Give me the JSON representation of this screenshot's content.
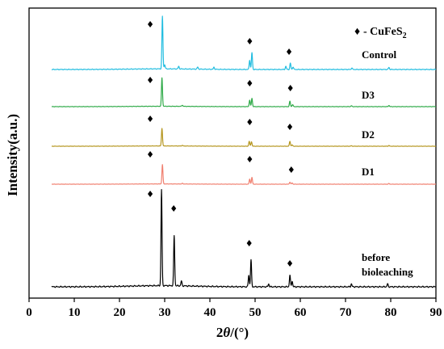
{
  "chart_data": {
    "type": "line",
    "xlabel_prefix": "2",
    "xlabel_theta": "θ",
    "xlabel_suffix": "/(°)",
    "ylabel": "Intensity(a.u.)",
    "xlim": [
      0,
      90
    ],
    "xticks": [
      0,
      10,
      20,
      30,
      40,
      50,
      60,
      70,
      80,
      90
    ],
    "yticks_shown": false,
    "grid": false,
    "legend": {
      "symbol": "♦",
      "text": "- CuFeS",
      "subscript": "2",
      "placement": "top-right"
    },
    "series": [
      {
        "name": "Control",
        "color": "#22bde0",
        "x_range": [
          5,
          90
        ],
        "peaks": [
          {
            "x": 29.5,
            "h": 1.0
          },
          {
            "x": 30.0,
            "h": 0.08
          },
          {
            "x": 33.1,
            "h": 0.05
          },
          {
            "x": 37.3,
            "h": 0.04
          },
          {
            "x": 40.9,
            "h": 0.04
          },
          {
            "x": 48.8,
            "h": 0.18
          },
          {
            "x": 49.3,
            "h": 0.32
          },
          {
            "x": 56.8,
            "h": 0.06
          },
          {
            "x": 57.8,
            "h": 0.12
          },
          {
            "x": 58.4,
            "h": 0.05
          },
          {
            "x": 71.4,
            "h": 0.03
          },
          {
            "x": 79.6,
            "h": 0.04
          }
        ],
        "markers": [
          26.8,
          48.8,
          57.5
        ]
      },
      {
        "name": "D3",
        "color": "#2faa48",
        "x_range": [
          5,
          90
        ],
        "peaks": [
          {
            "x": 29.4,
            "h": 0.95
          },
          {
            "x": 33.9,
            "h": 0.04
          },
          {
            "x": 48.8,
            "h": 0.22
          },
          {
            "x": 49.3,
            "h": 0.28
          },
          {
            "x": 57.7,
            "h": 0.18
          },
          {
            "x": 58.3,
            "h": 0.07
          },
          {
            "x": 71.3,
            "h": 0.03
          },
          {
            "x": 79.6,
            "h": 0.04
          }
        ],
        "markers": [
          26.8,
          48.8,
          57.8
        ]
      },
      {
        "name": "D2",
        "color": "#b5961f",
        "x_range": [
          5,
          90
        ],
        "peaks": [
          {
            "x": 29.4,
            "h": 0.78
          },
          {
            "x": 33.9,
            "h": 0.03
          },
          {
            "x": 48.7,
            "h": 0.22
          },
          {
            "x": 49.2,
            "h": 0.2
          },
          {
            "x": 57.7,
            "h": 0.22
          },
          {
            "x": 58.2,
            "h": 0.06
          },
          {
            "x": 71.3,
            "h": 0.02
          },
          {
            "x": 79.6,
            "h": 0.03
          }
        ],
        "markers": [
          26.8,
          48.8,
          57.7
        ]
      },
      {
        "name": "D1",
        "color": "#f08070",
        "x_range": [
          5,
          90
        ],
        "peaks": [
          {
            "x": 29.5,
            "h": 0.92
          },
          {
            "x": 33.9,
            "h": 0.03
          },
          {
            "x": 48.8,
            "h": 0.24
          },
          {
            "x": 49.3,
            "h": 0.32
          },
          {
            "x": 57.7,
            "h": 0.1
          },
          {
            "x": 58.2,
            "h": 0.06
          },
          {
            "x": 79.6,
            "h": 0.03
          }
        ],
        "markers": [
          26.8,
          48.8,
          58.0
        ]
      },
      {
        "name": "before bioleaching",
        "label_lines": [
          "before",
          "bioleaching"
        ],
        "color": "#000000",
        "x_range": [
          5,
          90
        ],
        "peaks": [
          {
            "x": 29.3,
            "h": 1.0
          },
          {
            "x": 32.1,
            "h": 0.52
          },
          {
            "x": 33.7,
            "h": 0.05
          },
          {
            "x": 48.6,
            "h": 0.12
          },
          {
            "x": 49.1,
            "h": 0.28
          },
          {
            "x": 53.0,
            "h": 0.03
          },
          {
            "x": 57.7,
            "h": 0.12
          },
          {
            "x": 58.2,
            "h": 0.06
          },
          {
            "x": 71.3,
            "h": 0.03
          },
          {
            "x": 79.3,
            "h": 0.03
          }
        ],
        "markers": [
          26.8,
          32.0,
          48.7,
          57.7
        ]
      }
    ]
  }
}
